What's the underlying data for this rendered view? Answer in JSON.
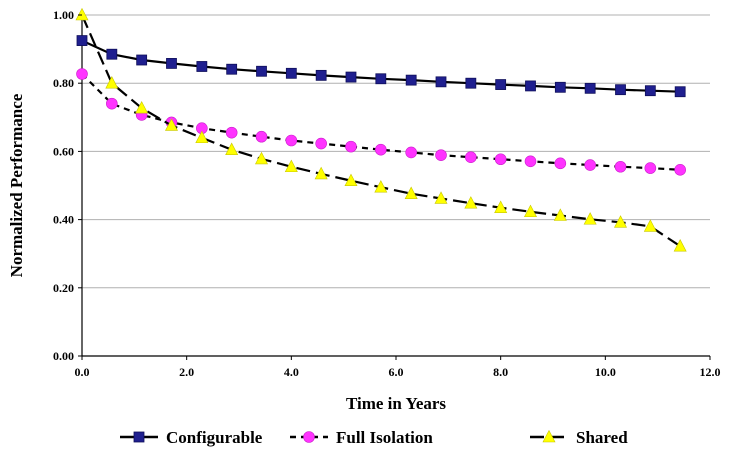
{
  "chart_data": {
    "type": "line",
    "title": "",
    "xlabel": "Time in Years",
    "ylabel": "Normalized Performance",
    "xlim": [
      0,
      12
    ],
    "ylim": [
      0,
      1
    ],
    "x_ticks": [
      "0.0",
      "2.0",
      "4.0",
      "6.0",
      "8.0",
      "10.0",
      "12.0"
    ],
    "y_ticks": [
      "0.00",
      "0.20",
      "0.40",
      "0.60",
      "0.80",
      "1.00"
    ],
    "grid": "horizontal",
    "legend_position": "bottom",
    "series": [
      {
        "name": "Configurable",
        "marker": "square",
        "marker_color": "#1f1f8f",
        "line_dash": "solid",
        "x": [
          0.0,
          0.57,
          1.14,
          1.71,
          2.29,
          2.86,
          3.43,
          4.0,
          4.57,
          5.14,
          5.71,
          6.29,
          6.86,
          7.43,
          8.0,
          8.57,
          9.14,
          9.71,
          10.29,
          10.86,
          11.43
        ],
        "y": [
          0.925,
          0.885,
          0.868,
          0.858,
          0.849,
          0.841,
          0.835,
          0.829,
          0.823,
          0.818,
          0.813,
          0.809,
          0.804,
          0.8,
          0.796,
          0.792,
          0.788,
          0.785,
          0.781,
          0.778,
          0.775
        ]
      },
      {
        "name": "Full Isolation",
        "marker": "circle",
        "marker_color": "#ff33ff",
        "line_dash": "dashed",
        "x": [
          0.0,
          0.57,
          1.14,
          1.71,
          2.29,
          2.86,
          3.43,
          4.0,
          4.57,
          5.14,
          5.71,
          6.29,
          6.86,
          7.43,
          8.0,
          8.57,
          9.14,
          9.71,
          10.29,
          10.86,
          11.43
        ],
        "y": [
          0.827,
          0.74,
          0.707,
          0.685,
          0.668,
          0.655,
          0.643,
          0.632,
          0.623,
          0.614,
          0.605,
          0.597,
          0.589,
          0.583,
          0.577,
          0.571,
          0.565,
          0.56,
          0.555,
          0.551,
          0.546
        ]
      },
      {
        "name": "Shared",
        "marker": "triangle",
        "marker_color": "#ffff00",
        "line_dash": "long-dash",
        "x": [
          0.0,
          0.57,
          1.14,
          1.71,
          2.29,
          2.86,
          3.43,
          4.0,
          4.57,
          5.14,
          5.71,
          6.29,
          6.86,
          7.43,
          8.0,
          8.57,
          9.14,
          9.71,
          10.29,
          10.86,
          11.43
        ],
        "y": [
          1.0,
          0.8,
          0.727,
          0.676,
          0.64,
          0.605,
          0.578,
          0.555,
          0.534,
          0.514,
          0.495,
          0.476,
          0.462,
          0.448,
          0.435,
          0.423,
          0.412,
          0.401,
          0.392,
          0.38,
          0.322
        ]
      }
    ]
  }
}
